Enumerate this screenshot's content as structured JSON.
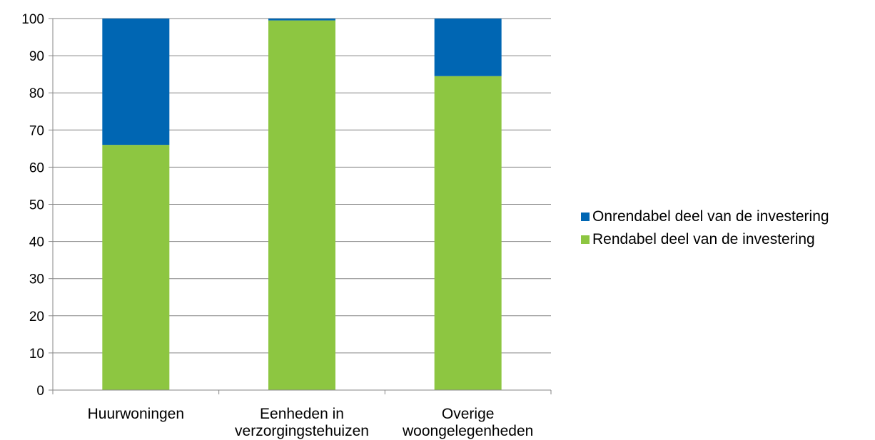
{
  "chart_data": {
    "type": "bar",
    "stacked": true,
    "categories": [
      [
        "Huurwoningen"
      ],
      [
        "Eenheden in",
        "verzorgingstehuizen"
      ],
      [
        "Overige",
        "woongelegenheden"
      ]
    ],
    "series": [
      {
        "name": "Rendabel deel van de investering",
        "color": "#8DC641",
        "values": [
          66,
          99.5,
          84.5
        ]
      },
      {
        "name": "Onrendabel deel van de investering",
        "color": "#0066B3",
        "values": [
          34,
          0.5,
          15.5
        ]
      }
    ],
    "ylim": [
      0,
      100
    ],
    "yticks": [
      0,
      10,
      20,
      30,
      40,
      50,
      60,
      70,
      80,
      90,
      100
    ],
    "grid": true,
    "legend_position": "right",
    "legend_order": [
      "Onrendabel deel van de investering",
      "Rendabel deel van de investering"
    ]
  }
}
